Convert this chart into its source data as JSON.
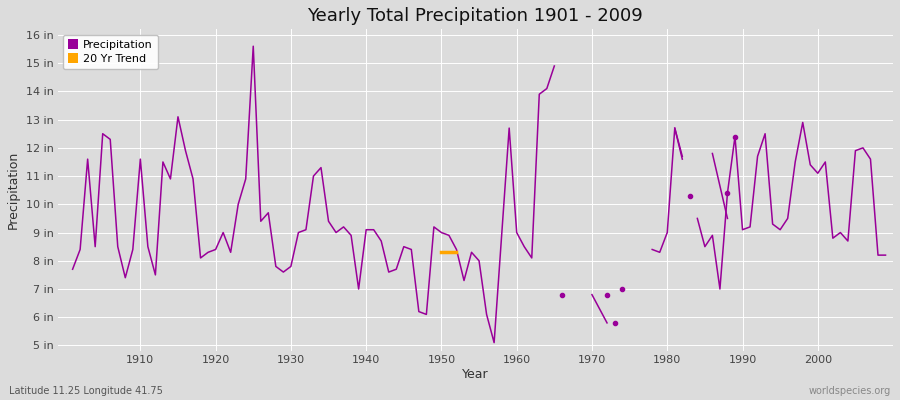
{
  "title": "Yearly Total Precipitation 1901 - 2009",
  "xlabel": "Year",
  "ylabel": "Precipitation",
  "subtitle_lat": "Latitude 11.25 Longitude 41.75",
  "watermark": "worldspecies.org",
  "line_color": "#990099",
  "trend_color": "#FFA500",
  "bg_color": "#DCDCDC",
  "grid_color": "#FFFFFF",
  "ylim": [
    4.8,
    16.2
  ],
  "yticks": [
    5,
    6,
    7,
    8,
    9,
    10,
    11,
    12,
    13,
    14,
    15,
    16
  ],
  "xlim": [
    1899,
    2010
  ],
  "xticks": [
    1910,
    1920,
    1930,
    1940,
    1950,
    1960,
    1970,
    1980,
    1990,
    2000
  ],
  "years": [
    1901,
    1902,
    1903,
    1904,
    1905,
    1906,
    1907,
    1908,
    1909,
    1910,
    1911,
    1912,
    1913,
    1914,
    1915,
    1916,
    1917,
    1918,
    1919,
    1920,
    1921,
    1922,
    1923,
    1924,
    1925,
    1926,
    1927,
    1928,
    1929,
    1930,
    1931,
    1932,
    1933,
    1934,
    1935,
    1936,
    1937,
    1938,
    1939,
    1940,
    1941,
    1942,
    1943,
    1944,
    1945,
    1946,
    1947,
    1948,
    1949,
    1950,
    1951,
    1952,
    1953,
    1954,
    1955,
    1956,
    1957,
    1958,
    1959,
    1960,
    1961,
    1962,
    1963,
    1964,
    1965,
    1966,
    1967,
    1968,
    1969,
    1970,
    1971,
    1972,
    1973,
    1974,
    1975,
    1976,
    1977,
    1978,
    1979,
    1980,
    1981,
    1982,
    1983,
    1984,
    1985,
    1986,
    1987,
    1988,
    1989,
    1990,
    1991,
    1992,
    1993,
    1994,
    1995,
    1996,
    1997,
    1998,
    1999,
    2000,
    2001,
    2002,
    2003,
    2004,
    2005,
    2006,
    2007,
    2008,
    2009
  ],
  "precip": [
    7.7,
    8.4,
    11.6,
    8.5,
    12.5,
    12.3,
    8.5,
    7.4,
    8.4,
    11.6,
    8.5,
    7.5,
    11.5,
    10.9,
    13.1,
    11.9,
    10.9,
    8.1,
    8.3,
    8.4,
    9.0,
    8.3,
    10.0,
    10.9,
    15.6,
    9.4,
    9.7,
    7.8,
    7.6,
    7.8,
    9.0,
    9.1,
    11.0,
    11.3,
    9.4,
    9.0,
    9.2,
    8.9,
    7.0,
    9.1,
    9.1,
    8.7,
    7.6,
    7.7,
    8.5,
    8.4,
    6.2,
    6.1,
    9.2,
    9.0,
    8.9,
    8.4,
    7.3,
    8.3,
    8.0,
    6.1,
    5.1,
    8.9,
    12.7,
    9.0,
    8.5,
    8.1,
    13.9,
    14.1,
    14.9,
    null,
    null,
    null,
    null,
    null,
    null,
    null,
    5.8,
    null,
    null,
    null,
    null,
    8.4,
    8.3,
    9.0,
    12.7,
    11.6,
    null,
    9.5,
    8.5,
    8.9,
    7.0,
    10.4,
    12.4,
    9.1,
    9.2,
    11.7,
    12.5,
    9.3,
    9.1,
    9.5,
    11.5,
    12.9,
    11.4,
    11.1,
    11.5,
    8.8,
    9.0,
    8.7,
    11.9,
    12.0,
    11.6,
    8.2,
    8.2
  ],
  "trend_segment_1": {
    "years": [
      1950,
      1952
    ],
    "values": [
      8.3,
      8.3
    ]
  },
  "isolated_dots": [
    {
      "year": 1966,
      "value": 6.8
    },
    {
      "year": 1972,
      "value": 6.8
    },
    {
      "year": 1974,
      "value": 7.0
    },
    {
      "year": 1988,
      "value": 10.4
    },
    {
      "year": 1989,
      "value": 12.4
    },
    {
      "year": 1983,
      "value": 10.3
    }
  ],
  "diagonal_segments": [
    {
      "years": [
        1970,
        1972
      ],
      "values": [
        6.8,
        5.8
      ]
    },
    {
      "years": [
        1981,
        1982
      ],
      "values": [
        12.7,
        11.7
      ]
    },
    {
      "years": [
        1986,
        1988
      ],
      "values": [
        11.8,
        9.5
      ]
    }
  ]
}
